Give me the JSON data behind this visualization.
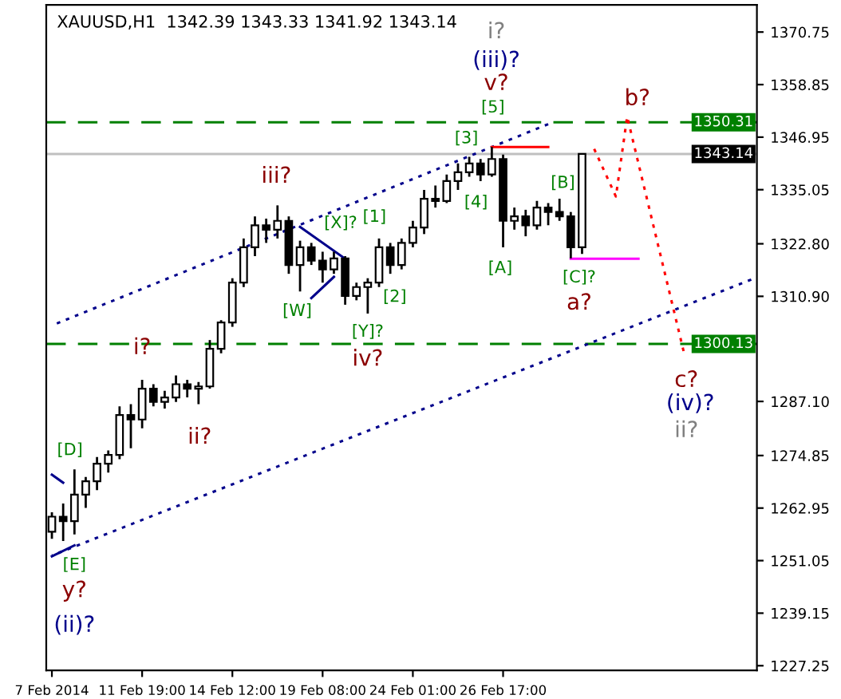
{
  "chart_data": {
    "type": "candlestick",
    "title": "XAUUSD,H1  1342.39 1343.33 1341.92 1343.14",
    "categories": [
      "7 Feb 2014",
      null,
      null,
      null,
      null,
      null,
      null,
      null,
      "11 Feb 19:00",
      null,
      null,
      null,
      null,
      null,
      null,
      null,
      "14 Feb 12:00",
      null,
      null,
      null,
      null,
      null,
      null,
      null,
      "19 Feb 08:00",
      null,
      null,
      null,
      null,
      null,
      null,
      null,
      "24 Feb 01:00",
      null,
      null,
      null,
      null,
      null,
      null,
      null,
      "26 Feb 17:00",
      null,
      null,
      null,
      null,
      null,
      null,
      null,
      null,
      null,
      null,
      null,
      null,
      null,
      null,
      null,
      null,
      null,
      null,
      null,
      null,
      null,
      null
    ],
    "ohlc": [
      [
        1257.6,
        1262,
        1256,
        1261
      ],
      [
        1261,
        1264,
        1255.5,
        1260
      ],
      [
        1260,
        1271.7,
        1257,
        1266
      ],
      [
        1266,
        1270,
        1263,
        1269
      ],
      [
        1269,
        1274.5,
        1267,
        1273
      ],
      [
        1273,
        1276,
        1271,
        1275
      ],
      [
        1275,
        1286,
        1274,
        1284
      ],
      [
        1284,
        1286.5,
        1276.5,
        1283
      ],
      [
        1283,
        1292,
        1281,
        1290
      ],
      [
        1290,
        1291,
        1286,
        1287
      ],
      [
        1287,
        1289.5,
        1285.5,
        1288
      ],
      [
        1288,
        1293,
        1287,
        1291
      ],
      [
        1291,
        1292,
        1288,
        1290
      ],
      [
        1290,
        1291.5,
        1286.5,
        1290.5
      ],
      [
        1290.5,
        1301,
        1290,
        1299
      ],
      [
        1299,
        1305.5,
        1298,
        1305
      ],
      [
        1305,
        1315,
        1304,
        1314
      ],
      [
        1314,
        1324,
        1313,
        1322
      ],
      [
        1322,
        1329,
        1320,
        1327
      ],
      [
        1327,
        1328.5,
        1323,
        1326
      ],
      [
        1326,
        1331.5,
        1324,
        1328
      ],
      [
        1328,
        1329,
        1316,
        1318
      ],
      [
        1318,
        1323.5,
        1312,
        1322
      ],
      [
        1322,
        1323,
        1318,
        1319
      ],
      [
        1319,
        1321,
        1314,
        1317
      ],
      [
        1317,
        1321,
        1316,
        1319.5
      ],
      [
        1319.5,
        1320,
        1309,
        1311
      ],
      [
        1311,
        1314,
        1310,
        1313
      ],
      [
        1313,
        1315,
        1307,
        1314
      ],
      [
        1314,
        1324,
        1313,
        1322
      ],
      [
        1322,
        1323,
        1316,
        1318
      ],
      [
        1318,
        1324,
        1317,
        1323
      ],
      [
        1323,
        1328,
        1322,
        1326.5
      ],
      [
        1326.5,
        1335,
        1325,
        1333
      ],
      [
        1333,
        1336,
        1331,
        1332.5
      ],
      [
        1332.5,
        1338.5,
        1332,
        1337
      ],
      [
        1337,
        1341,
        1335,
        1339
      ],
      [
        1339,
        1342.5,
        1338,
        1341
      ],
      [
        1341,
        1342,
        1337,
        1338.5
      ],
      [
        1338.5,
        1344.7,
        1338,
        1342
      ],
      [
        1342,
        1343,
        1322,
        1328
      ],
      [
        1328,
        1331,
        1326,
        1329
      ],
      [
        1329,
        1330.5,
        1324.5,
        1327
      ],
      [
        1327,
        1332.5,
        1326,
        1331
      ],
      [
        1331,
        1332,
        1327,
        1330
      ],
      [
        1330,
        1333,
        1328,
        1329
      ],
      [
        1329,
        1330,
        1319.5,
        1322
      ],
      [
        1322,
        1343.3,
        1320.5,
        1343.14
      ],
      null,
      null,
      null,
      null,
      null,
      null,
      null,
      null,
      null,
      null,
      null,
      null,
      null,
      null,
      null
    ],
    "ylim": [
      1226.2,
      1376.9
    ],
    "yticks": [
      1370.75,
      1358.85,
      1346.95,
      1335.05,
      {
        "value": 1322.8,
        "label": "1322.80"
      },
      {
        "value": 1310.9,
        "label": "1310.90"
      },
      {
        "value": 1287.1,
        "label": "1287.10"
      },
      1274.85,
      1262.95,
      1251.05,
      1239.15,
      1227.25
    ],
    "series": [
      {
        "type": "line",
        "color": "#00008b",
        "line_style": "dotted",
        "values": [
          1304.3,
          null,
          null,
          null,
          null,
          null,
          null,
          null,
          null,
          null,
          null,
          null,
          null,
          null,
          null,
          null,
          null,
          null,
          null,
          null,
          null,
          null,
          null,
          null,
          null,
          null,
          null,
          null,
          null,
          null,
          null,
          null,
          null,
          null,
          null,
          null,
          null,
          null,
          null,
          null,
          null,
          null,
          null,
          null,
          1349.9,
          null,
          null,
          null,
          null,
          null,
          null,
          null,
          null,
          null,
          null,
          null,
          null,
          null,
          null,
          null,
          null,
          null,
          null
        ]
      },
      {
        "type": "line",
        "color": "#00008b",
        "line_style": "dotted",
        "values": [
          1252.2,
          null,
          null,
          null,
          null,
          null,
          null,
          null,
          null,
          null,
          null,
          null,
          null,
          null,
          null,
          null,
          null,
          null,
          null,
          null,
          null,
          null,
          null,
          null,
          null,
          null,
          null,
          null,
          null,
          null,
          null,
          null,
          null,
          null,
          null,
          null,
          null,
          null,
          null,
          null,
          null,
          null,
          null,
          null,
          null,
          null,
          null,
          null,
          null,
          null,
          null,
          null,
          null,
          null,
          null,
          null,
          null,
          null,
          null,
          null,
          null,
          null,
          1314.7
        ]
      },
      {
        "type": "line",
        "color": "#00008b",
        "line_style": "solid",
        "values": [
          null,
          null,
          null,
          null,
          null,
          null,
          null,
          null,
          null,
          null,
          null,
          null,
          null,
          null,
          null,
          null,
          null,
          null,
          null,
          null,
          null,
          null,
          1326.6,
          null,
          null,
          null,
          1319.4,
          null,
          null,
          null,
          null,
          null,
          null,
          null,
          null,
          null,
          null,
          null,
          null,
          null,
          null,
          null,
          null,
          null,
          null,
          null,
          null,
          null,
          null,
          null,
          null,
          null,
          null,
          null,
          null,
          null,
          null,
          null,
          null,
          null,
          null,
          null,
          null
        ]
      },
      {
        "type": "line",
        "color": "#00008b",
        "line_style": "solid",
        "values": [
          null,
          null,
          null,
          null,
          null,
          null,
          null,
          null,
          null,
          null,
          null,
          null,
          null,
          null,
          null,
          null,
          null,
          null,
          null,
          null,
          null,
          null,
          null,
          1310.5,
          null,
          1315.3,
          null,
          null,
          null,
          null,
          null,
          null,
          null,
          null,
          null,
          null,
          null,
          null,
          null,
          null,
          null,
          null,
          null,
          null,
          null,
          null,
          null,
          null,
          null,
          null,
          null,
          null,
          null,
          null,
          null,
          null,
          null,
          null,
          null,
          null,
          null,
          null,
          null
        ]
      },
      {
        "type": "line",
        "color": "#00008b",
        "line_style": "solid",
        "values": [
          1270.5,
          1268.7,
          null,
          null,
          null,
          null,
          null,
          null,
          null,
          null,
          null,
          null,
          null,
          null,
          null,
          null,
          null,
          null,
          null,
          null,
          null,
          null,
          null,
          null,
          null,
          null,
          null,
          null,
          null,
          null,
          null,
          null,
          null,
          null,
          null,
          null,
          null,
          null,
          null,
          null,
          null,
          null,
          null,
          null,
          null,
          null,
          null,
          null,
          null,
          null,
          null,
          null,
          null,
          null,
          null,
          null,
          null,
          null,
          null,
          null,
          null,
          null,
          null
        ]
      },
      {
        "type": "line",
        "color": "#00008b",
        "line_style": "solid",
        "values": [
          1252,
          null,
          1254.5,
          null,
          null,
          null,
          null,
          null,
          null,
          null,
          null,
          null,
          null,
          null,
          null,
          null,
          null,
          null,
          null,
          null,
          null,
          null,
          null,
          null,
          null,
          null,
          null,
          null,
          null,
          null,
          null,
          null,
          null,
          null,
          null,
          null,
          null,
          null,
          null,
          null,
          null,
          null,
          null,
          null,
          null,
          null,
          null,
          null,
          null,
          null,
          null,
          null,
          null,
          null,
          null,
          null,
          null,
          null,
          null,
          null,
          null,
          null,
          null
        ]
      },
      {
        "type": "line",
        "color": "#ff0000",
        "line_style": "solid",
        "values": [
          null,
          null,
          null,
          null,
          null,
          null,
          null,
          null,
          null,
          null,
          null,
          null,
          null,
          null,
          null,
          null,
          null,
          null,
          null,
          null,
          null,
          null,
          null,
          null,
          null,
          null,
          null,
          null,
          null,
          null,
          null,
          null,
          null,
          null,
          null,
          null,
          null,
          null,
          null,
          1344.7,
          null,
          null,
          null,
          null,
          1344.7,
          null,
          null,
          null,
          null,
          null,
          null,
          null,
          null,
          null,
          null,
          null,
          null,
          null,
          null,
          null,
          null,
          null,
          null
        ]
      },
      {
        "type": "line",
        "color": "#ff00ff",
        "line_style": "solid",
        "values": [
          null,
          null,
          null,
          null,
          null,
          null,
          null,
          null,
          null,
          null,
          null,
          null,
          null,
          null,
          null,
          null,
          null,
          null,
          null,
          null,
          null,
          null,
          null,
          null,
          null,
          null,
          null,
          null,
          null,
          null,
          null,
          null,
          null,
          null,
          null,
          null,
          null,
          null,
          null,
          null,
          null,
          null,
          null,
          null,
          null,
          null,
          1319.4,
          null,
          null,
          null,
          null,
          null,
          1319.4,
          null,
          null,
          null,
          null,
          null,
          null,
          null,
          null,
          null,
          null
        ]
      },
      {
        "type": "line",
        "color": "#ff0000",
        "line_style": "dotted",
        "values": [
          null,
          null,
          null,
          null,
          null,
          null,
          null,
          null,
          null,
          null,
          null,
          null,
          null,
          null,
          null,
          null,
          null,
          null,
          null,
          null,
          null,
          null,
          null,
          null,
          null,
          null,
          null,
          null,
          null,
          null,
          null,
          null,
          null,
          null,
          null,
          null,
          null,
          null,
          null,
          null,
          null,
          null,
          null,
          null,
          null,
          null,
          null,
          null,
          1344.7,
          null,
          1333.5,
          1351.6,
          null,
          null,
          null,
          null,
          1298.5,
          null,
          null,
          null,
          null,
          null,
          null
        ]
      }
    ],
    "ref_lines": [
      {
        "axis": "y",
        "value": 1350.31,
        "label": "1350.31",
        "color": "#008000",
        "line_style": "dashed"
      },
      {
        "axis": "y",
        "value": 1300.13,
        "label": "1300.13",
        "color": "#008000",
        "line_style": "dashed"
      },
      {
        "axis": "y",
        "value": 1343.14,
        "label": "1343.14",
        "color": "#c0c0c0",
        "line_style": "solid"
      }
    ],
    "annotations": [
      "i?",
      "(iii)?",
      "v?",
      "[5]",
      "[3]",
      "[4]",
      "[A]",
      "[B]",
      "[C]?",
      "a?",
      "b?",
      "c?",
      "(iv)?",
      "ii?",
      "iii?",
      "[X]?",
      "[1]",
      "[W]",
      "[2]",
      "[Y]?",
      "iv?",
      "i?",
      "ii?",
      "[D]",
      "[E]",
      "y?",
      "(ii)?"
    ]
  }
}
